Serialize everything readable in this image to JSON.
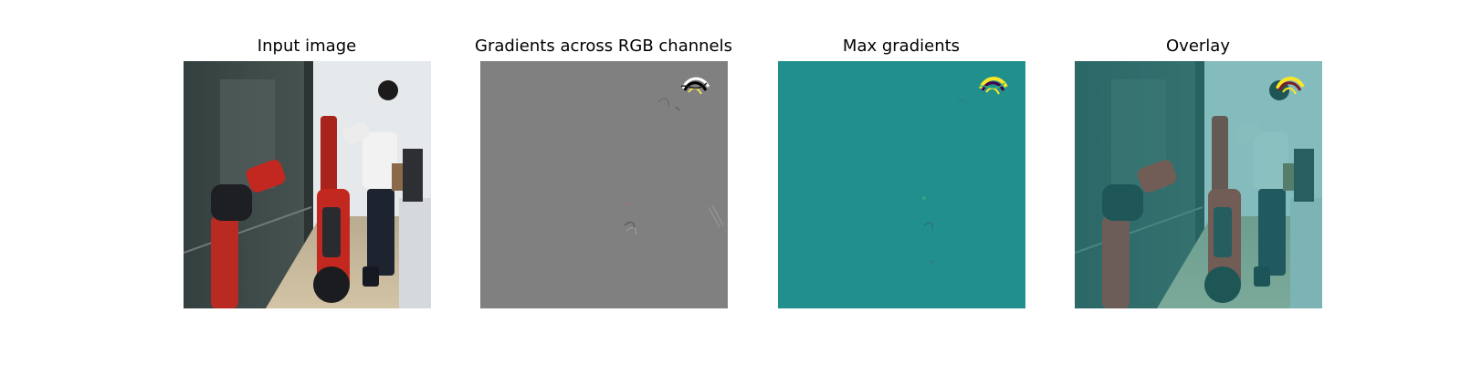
{
  "figure": {
    "panels": [
      {
        "title": "Input image"
      },
      {
        "title": "Gradients across RGB channels"
      },
      {
        "title": "Max gradients"
      },
      {
        "title": "Overlay"
      }
    ]
  },
  "colors": {
    "gradient_gray": "#808080",
    "max_gradient_teal": "#21908d",
    "overlay_tint": "#5fc6bd",
    "robot_red": "#c2281f",
    "shirt_white": "#f2f2f2",
    "trousers_dark": "#1e2330",
    "glass_dark": "#3b4543",
    "wall_light": "#e7ebee",
    "floor_beige": "#c8b89c"
  },
  "icons": {
    "panel_1": "scene-photo",
    "panel_2": "gradient-map",
    "panel_3": "saliency-map",
    "panel_4": "saliency-overlay"
  }
}
